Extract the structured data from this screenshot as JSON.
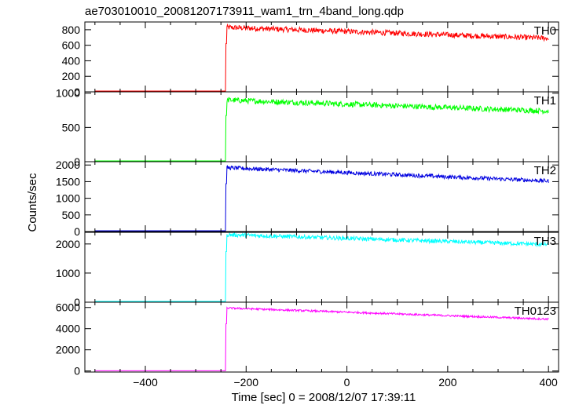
{
  "chart_data": {
    "type": "line",
    "title": "ae703010010_20081207173911_wam1_trn_4band_long.qdp",
    "xlabel": "Time [sec] 0 = 2008/12/07 17:39:11",
    "ylabel": "Counts/sec",
    "xlim": [
      -520,
      420
    ],
    "x_ticks": [
      -400,
      -200,
      0,
      200,
      400
    ],
    "x_tick_labels": [
      "−400",
      "−200",
      "0",
      "200",
      "400"
    ],
    "onset_time": -240,
    "x_start": -500,
    "x_end": 400,
    "panels": [
      {
        "name": "TH0",
        "color": "#ff0000",
        "ylim": [
          0,
          900
        ],
        "y_ticks": [
          0,
          200,
          400,
          600,
          800
        ],
        "y_tick_labels": [
          "0",
          "200",
          "400",
          "600",
          "800"
        ],
        "pre_level": 5,
        "post_start": 830,
        "post_end": 690,
        "noise": 35
      },
      {
        "name": "TH1",
        "color": "#00ff00",
        "ylim": [
          0,
          1020
        ],
        "y_ticks": [
          0,
          500,
          1000
        ],
        "y_tick_labels": [
          "0",
          "500",
          "1000"
        ],
        "pre_level": 5,
        "post_start": 900,
        "post_end": 740,
        "noise": 40
      },
      {
        "name": "TH2",
        "color": "#0000e0",
        "ylim": [
          0,
          2100
        ],
        "y_ticks": [
          0,
          500,
          1000,
          1500,
          2000
        ],
        "y_tick_labels": [
          "0",
          "500",
          "1000",
          "1500",
          "2000"
        ],
        "pre_level": 5,
        "post_start": 1920,
        "post_end": 1520,
        "noise": 60
      },
      {
        "name": "TH3",
        "color": "#00ffff",
        "ylim": [
          0,
          2400
        ],
        "y_ticks": [
          0,
          1000,
          2000
        ],
        "y_tick_labels": [
          "0",
          "1000",
          "2000"
        ],
        "pre_level": 5,
        "post_start": 2320,
        "post_end": 1980,
        "noise": 70
      },
      {
        "name": "TH0123",
        "color": "#ff00ff",
        "ylim": [
          -100,
          6500
        ],
        "y_ticks": [
          0,
          2000,
          4000,
          6000
        ],
        "y_tick_labels": [
          "0",
          "2000",
          "4000",
          "6000"
        ],
        "pre_level": 20,
        "post_start": 5950,
        "post_end": 4900,
        "noise": 90
      }
    ]
  }
}
